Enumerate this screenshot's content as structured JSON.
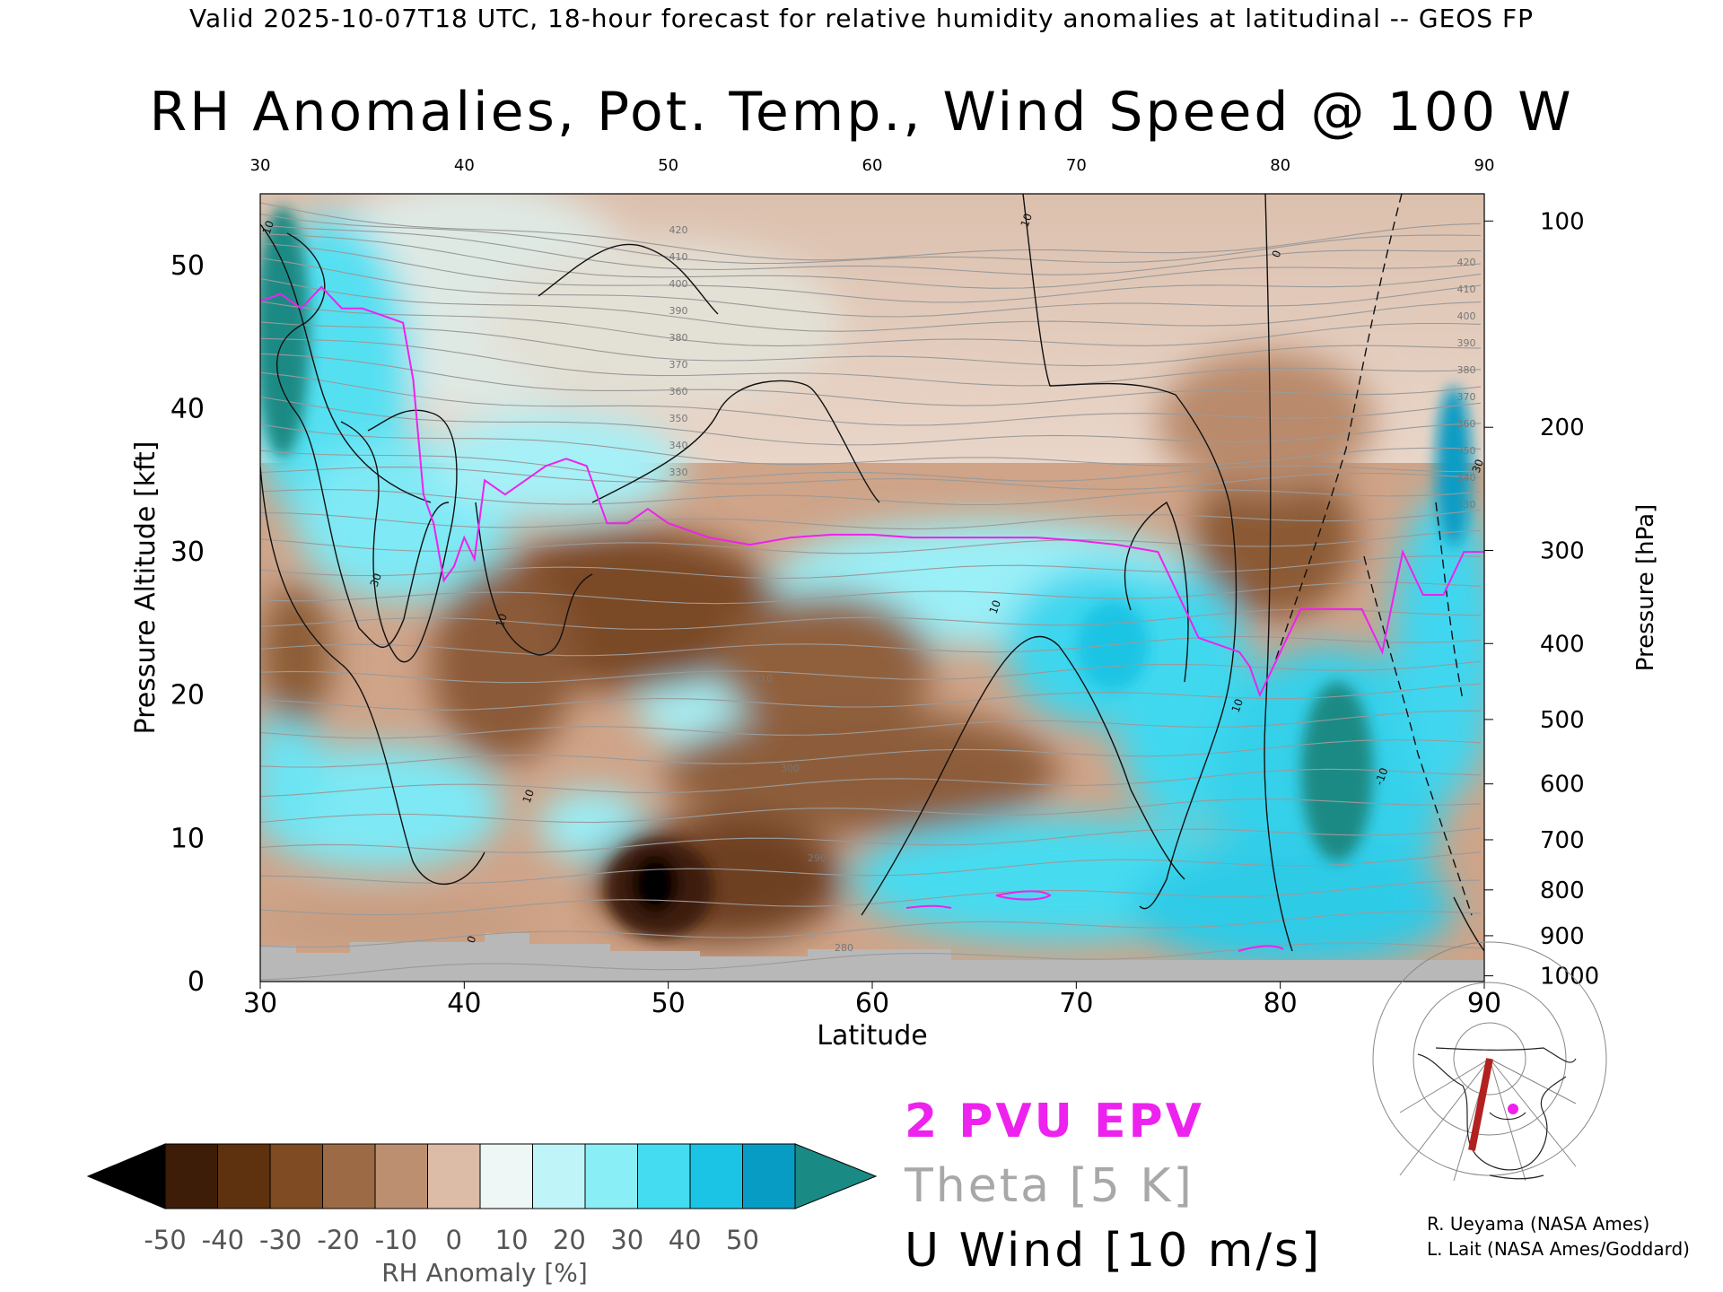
{
  "header": "Valid 2025-10-07T18 UTC, 18-hour forecast for relative humidity anomalies at latitudinal -- GEOS FP",
  "chart_data": {
    "type": "heatmap",
    "title": "RH Anomalies, Pot. Temp., Wind Speed @ 100 W",
    "xlabel": "Latitude",
    "ylabel": "Pressure Altitude [kft]",
    "y2label": "Pressure [hPa]",
    "xlim": [
      30,
      90
    ],
    "ylim": [
      0,
      55
    ],
    "x_ticks": [
      "30",
      "40",
      "50",
      "60",
      "70",
      "80",
      "90"
    ],
    "y_ticks": [
      "0",
      "10",
      "20",
      "30",
      "40",
      "50"
    ],
    "pressure_ticks": [
      {
        "label": "100",
        "kft": 53.1
      },
      {
        "label": "200",
        "kft": 38.7
      },
      {
        "label": "300",
        "kft": 30.1
      },
      {
        "label": "400",
        "kft": 23.6
      },
      {
        "label": "500",
        "kft": 18.3
      },
      {
        "label": "600",
        "kft": 13.8
      },
      {
        "label": "700",
        "kft": 9.9
      },
      {
        "label": "800",
        "kft": 6.4
      },
      {
        "label": "900",
        "kft": 3.2
      },
      {
        "label": "1000",
        "kft": 0.4
      }
    ],
    "grid": false,
    "colorbar": {
      "label": "RH Anomaly [%]",
      "ticks": [
        "-50",
        "-40",
        "-30",
        "-20",
        "-10",
        "0",
        "10",
        "20",
        "30",
        "40",
        "50"
      ],
      "colors": [
        "#3d1d08",
        "#5e320f",
        "#7e4b22",
        "#9c6a44",
        "#bc8f70",
        "#dcbba7",
        "#eef7f5",
        "#bff4f8",
        "#8aeef6",
        "#44dcf0",
        "#1bc4e4",
        "#079cc4"
      ],
      "under_color": "#000000",
      "over_color": "#1a8a84"
    },
    "theta_contour_labels": [
      "420",
      "410",
      "400",
      "390",
      "380",
      "370",
      "360",
      "350",
      "340",
      "330",
      "320",
      "310",
      "300",
      "290",
      "280"
    ],
    "u_wind_contour_labels": [
      "10",
      "20",
      "30",
      "0",
      "-10"
    ],
    "epv_2pvu": {
      "lat": [
        30,
        31,
        32,
        33,
        34,
        35,
        36,
        37,
        37.5,
        38,
        38.5,
        39,
        39.5,
        40,
        40.5,
        41,
        42,
        43,
        44,
        45,
        46,
        47,
        48,
        49,
        50,
        52,
        54,
        56,
        58,
        60,
        62,
        64,
        66,
        68,
        70,
        72,
        74,
        75,
        76,
        77,
        78,
        78.5,
        79,
        80,
        81,
        82,
        83,
        84,
        85,
        86,
        87,
        88,
        89,
        90
      ],
      "kft": [
        47.5,
        48,
        47,
        48.5,
        47,
        47,
        46.5,
        46,
        42,
        34,
        32,
        28,
        29,
        31,
        29.5,
        35,
        34,
        35,
        36,
        36.5,
        36,
        32,
        32,
        33,
        32,
        31,
        30.5,
        31,
        31.2,
        31.2,
        31,
        31,
        31,
        31,
        30.8,
        30.5,
        30,
        27,
        24,
        23.5,
        23,
        22,
        20,
        23,
        26,
        26,
        26,
        26,
        23,
        30,
        27,
        27,
        30,
        30
      ]
    }
  },
  "legend": {
    "epv": "2 PVU EPV",
    "theta": "Theta [5 K]",
    "u_wind": "U Wind [10 m/s]"
  },
  "credits": [
    "R. Ueyama (NASA Ames)",
    "L. Lait (NASA Ames/Goddard)"
  ]
}
